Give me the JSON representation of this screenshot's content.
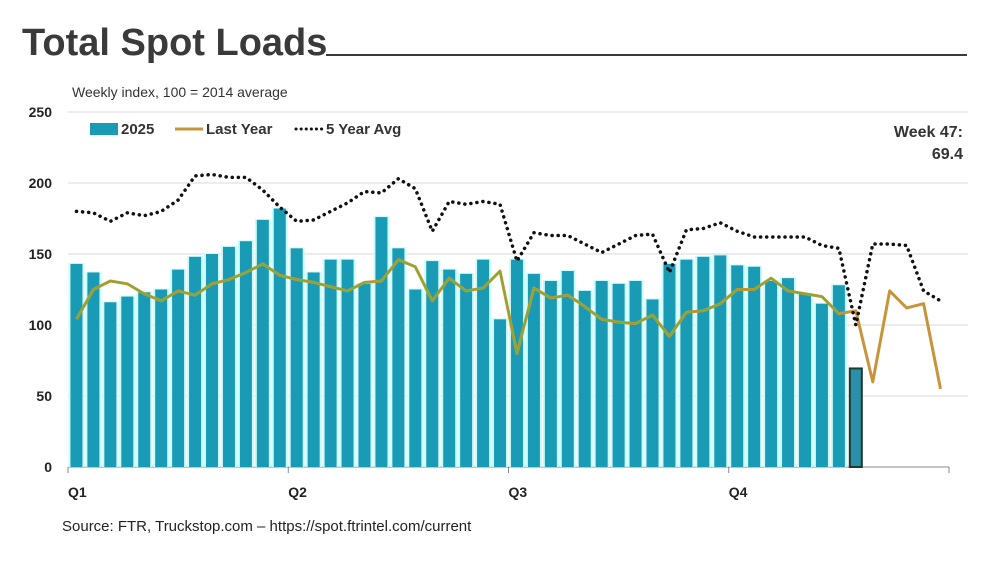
{
  "title": "Total Spot Loads",
  "subtitle": "Weekly index, 100 = 2014 average",
  "source": "Source: FTR, Truckstop.com – https://spot.ftrintel.com/current",
  "annotation": {
    "line1": "Week 47:",
    "line2": "69.4"
  },
  "chart_data": {
    "type": "bar",
    "title": "Total Spot Loads",
    "ylim": [
      0,
      250
    ],
    "yticks": [
      0,
      50,
      100,
      150,
      200,
      250
    ],
    "xticks": [
      "Q1",
      "Q2",
      "Q3",
      "Q4"
    ],
    "weeks": 52,
    "grid": true,
    "legend": "top-left",
    "colors": {
      "bars": "#1a9bb5",
      "highlight": "#2a8fa8",
      "last_year": "#c8943a",
      "avg": "#111111"
    },
    "series": [
      {
        "name": "2025",
        "type": "bar",
        "values": [
          143,
          137,
          116,
          120,
          123,
          125,
          139,
          148,
          150,
          155,
          159,
          174,
          182,
          154,
          137,
          146,
          146,
          129,
          176,
          154,
          125,
          145,
          139,
          136,
          146,
          104,
          146,
          136,
          131,
          138,
          124,
          131,
          129,
          131,
          118,
          143,
          146,
          148,
          149,
          142,
          141,
          131,
          133,
          122,
          115,
          128,
          69.4
        ]
      },
      {
        "name": "Last Year",
        "type": "line",
        "values": [
          104,
          125,
          131,
          129,
          122,
          117,
          124,
          121,
          129,
          132,
          137,
          143,
          135,
          132,
          130,
          127,
          124,
          130,
          131,
          146,
          141,
          117,
          133,
          124,
          126,
          138,
          80,
          126,
          119,
          121,
          113,
          104,
          102,
          101,
          107,
          92,
          109,
          110,
          115,
          125,
          125,
          133,
          124,
          122,
          120,
          108,
          110,
          60,
          124,
          112,
          115,
          55
        ]
      },
      {
        "name": "5 Year Avg",
        "type": "line",
        "values": [
          180,
          179,
          173,
          179,
          177,
          180,
          188,
          205,
          206,
          204,
          204,
          195,
          183,
          173,
          174,
          180,
          186,
          194,
          193,
          203,
          196,
          166,
          187,
          185,
          187,
          185,
          145,
          165,
          163,
          163,
          157,
          151,
          157,
          163,
          164,
          137,
          167,
          168,
          172,
          166,
          162,
          162,
          162,
          162,
          156,
          154,
          100,
          157,
          157,
          156,
          124,
          117
        ]
      }
    ]
  }
}
